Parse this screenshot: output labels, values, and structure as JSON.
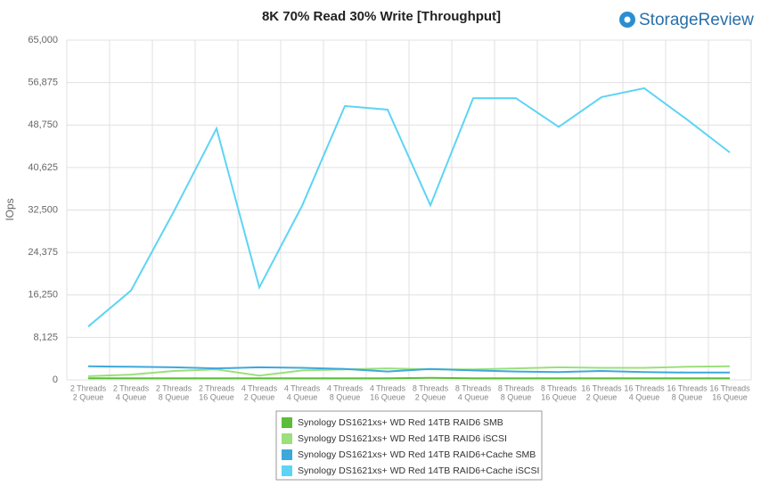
{
  "chart_data": {
    "type": "line",
    "title": "8K 70% Read 30% Write [Throughput]",
    "logo": "StorageReview",
    "y_label": "IOps",
    "categories": [
      [
        "2 Threads",
        "2 Queue"
      ],
      [
        "2 Threads",
        "4 Queue"
      ],
      [
        "2 Threads",
        "8 Queue"
      ],
      [
        "2 Threads",
        "16 Queue"
      ],
      [
        "4 Threads",
        "2 Queue"
      ],
      [
        "4 Threads",
        "4 Queue"
      ],
      [
        "4 Threads",
        "8 Queue"
      ],
      [
        "4 Threads",
        "16 Queue"
      ],
      [
        "8 Threads",
        "2 Queue"
      ],
      [
        "8 Threads",
        "4 Queue"
      ],
      [
        "8 Threads",
        "8 Queue"
      ],
      [
        "8 Threads",
        "16 Queue"
      ],
      [
        "16 Threads",
        "2 Queue"
      ],
      [
        "16 Threads",
        "4 Queue"
      ],
      [
        "16 Threads",
        "8 Queue"
      ],
      [
        "16 Threads",
        "16 Queue"
      ]
    ],
    "series": [
      {
        "name": "Synology DS1621xs+ WD Red 14TB RAID6 SMB",
        "color": "#5cbd3a",
        "values": [
          300,
          300,
          300,
          300,
          300,
          300,
          300,
          300,
          400,
          300,
          300,
          300,
          300,
          300,
          300,
          300
        ]
      },
      {
        "name": "Synology DS1621xs+ WD Red 14TB RAID6 iSCSI",
        "color": "#9be07a",
        "values": [
          700,
          1000,
          1700,
          2000,
          800,
          1800,
          2000,
          2200,
          2000,
          2000,
          2200,
          2400,
          2300,
          2300,
          2500,
          2600
        ]
      },
      {
        "name": "Synology DS1621xs+ WD Red 14TB RAID6+Cache SMB",
        "color": "#3ea8dc",
        "values": [
          2600,
          2500,
          2400,
          2200,
          2400,
          2300,
          2100,
          1600,
          2100,
          1800,
          1600,
          1500,
          1700,
          1500,
          1400,
          1400
        ]
      },
      {
        "name": "Synology DS1621xs+ WD Red 14TB RAID6+Cache iSCSI",
        "color": "#5dd4f5",
        "values": [
          10200,
          17100,
          32200,
          48100,
          17700,
          33300,
          52400,
          51700,
          33400,
          53900,
          53900,
          48400,
          54100,
          55800,
          49800,
          43500
        ]
      }
    ],
    "ylim": [
      0,
      65000
    ],
    "yticks": [
      0,
      {
        "value": 8125,
        "label": "8,125"
      },
      {
        "value": 16250,
        "label": "16,250"
      },
      {
        "value": 24375,
        "label": "24,375"
      },
      {
        "value": 32500,
        "label": "32,500"
      },
      {
        "value": 40625,
        "label": "40,625"
      },
      {
        "value": 48750,
        "label": "48,750"
      },
      {
        "value": 56875,
        "label": "56,875"
      },
      {
        "value": 65000,
        "label": "65,000"
      }
    ],
    "grid": true
  }
}
